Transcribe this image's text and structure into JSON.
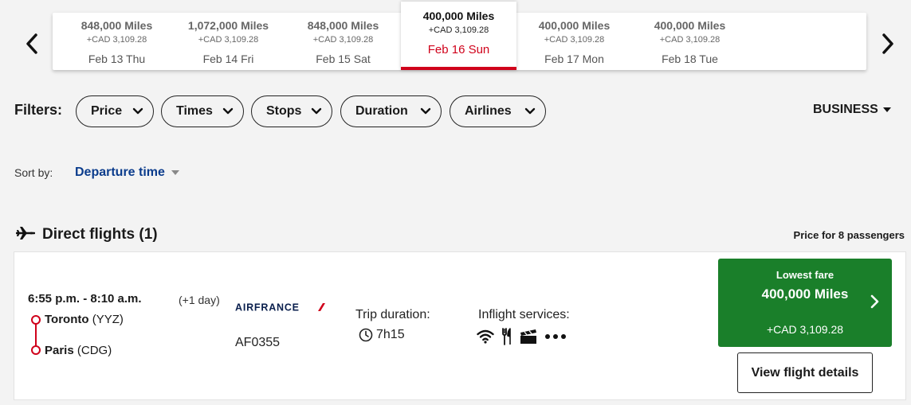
{
  "date_carousel": {
    "dates": [
      {
        "miles": "848,000 Miles",
        "tax": "+CAD 3,109.28",
        "day": "Feb 13 Thu"
      },
      {
        "miles": "1,072,000 Miles",
        "tax": "+CAD 3,109.28",
        "day": "Feb 14 Fri"
      },
      {
        "miles": "848,000 Miles",
        "tax": "+CAD 3,109.28",
        "day": "Feb 15 Sat"
      },
      {
        "miles": "400,000 Miles",
        "tax": "+CAD 3,109.28",
        "day": "Feb 16 Sun"
      },
      {
        "miles": "400,000 Miles",
        "tax": "+CAD 3,109.28",
        "day": "Feb 17 Mon"
      },
      {
        "miles": "400,000 Miles",
        "tax": "+CAD 3,109.28",
        "day": "Feb 18 Tue"
      }
    ],
    "selected_index": 3,
    "prev_icon": "chevron-left-icon",
    "next_icon": "chevron-right-icon"
  },
  "filters": {
    "label": "Filters:",
    "items": [
      {
        "label": "Price"
      },
      {
        "label": "Times"
      },
      {
        "label": "Stops"
      },
      {
        "label": "Duration"
      },
      {
        "label": "Airlines"
      }
    ],
    "cabin": "BUSINESS"
  },
  "sort": {
    "label": "Sort by:",
    "value": "Departure time"
  },
  "section": {
    "title": "Direct flights (1)",
    "icon": "airplane-icon",
    "price_note": "Price for 8 passengers"
  },
  "flight": {
    "times": "6:55 p.m. - 8:10 a.m.",
    "plus_day": "(+1 day)",
    "origin_city": "Toronto",
    "origin_code": "(YYZ)",
    "dest_city": "Paris",
    "dest_code": "(CDG)",
    "airline_logo": "AIRFRANCE",
    "flight_number": "AF0355",
    "duration_label": "Trip duration:",
    "duration": "7h15",
    "services_label": "Inflight services:",
    "services_icons": [
      "wifi-icon",
      "meal-icon",
      "entertainment-icon",
      "more-icon"
    ],
    "fare_label": "Lowest fare",
    "fare_miles": "400,000 Miles",
    "fare_tax": "+CAD 3,109.28",
    "details_button": "View flight details"
  },
  "colors": {
    "accent_red": "#d0021b",
    "fare_green": "#1a7f2a",
    "link_blue": "#0b3c8c"
  }
}
